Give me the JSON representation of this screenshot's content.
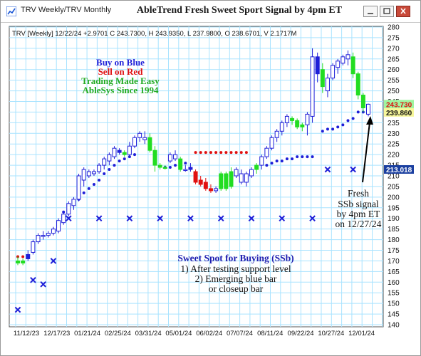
{
  "window": {
    "tab_text": "TRV Weekly/TRV Monthly",
    "title": "AbleTrend Fresh Sweet Sport Signal by 4pm ET"
  },
  "info_line": "TRV [Weekly] 12/22/24  +2.9701 C 243.7300, H 243.9350, L 237.9800, O 238.6701, V 2.1717M",
  "legend": {
    "buy": "Buy on Blue",
    "sell": "Sell on Red",
    "tagline": "Trading Made Easy",
    "since": "AbleSys Since 1994"
  },
  "annotations": {
    "fresh": [
      "Fresh",
      "SSb signal",
      "by 4pm ET",
      "on 12/27/24"
    ],
    "sweet_spot": [
      "Sweet Spot for Buying (SSb)",
      "1) After testing support level",
      "2) Emerging blue bar",
      "or closeup bar"
    ]
  },
  "colors": {
    "blue": "#1f1fd8",
    "red": "#e01010",
    "green": "#22dd22",
    "grid": "#a9e3ff",
    "badge_green": "#9ff59f",
    "badge_yellow": "#f7f79a",
    "badge_blue": "#1a3fa0"
  },
  "chart_data": {
    "type": "candlestick",
    "ylim": [
      140,
      280
    ],
    "y_ticks": [
      140,
      145,
      150,
      155,
      160,
      165,
      170,
      175,
      180,
      185,
      190,
      195,
      200,
      205,
      210,
      215,
      220,
      225,
      230,
      235,
      240,
      245,
      250,
      255,
      260,
      265,
      270,
      275,
      280
    ],
    "x_labels": [
      "11/12/23",
      "12/17/23",
      "01/21/24",
      "02/25/24",
      "03/31/24",
      "05/01/24",
      "06/02/24",
      "07/07/24",
      "08/11/24",
      "09/22/24",
      "10/27/24",
      "12/01/24"
    ],
    "price_badges": [
      {
        "value": "243.730",
        "style": "green"
      },
      {
        "value": "239.860",
        "style": "yellow"
      },
      {
        "value": "213.018",
        "style": "blue"
      }
    ],
    "candles": [
      {
        "o": 170,
        "h": 172,
        "l": 168,
        "c": 169,
        "color": "green"
      },
      {
        "o": 169,
        "h": 171,
        "l": 168,
        "c": 170,
        "color": "green"
      },
      {
        "o": 171,
        "h": 175,
        "l": 170,
        "c": 173,
        "color": "blue"
      },
      {
        "o": 174,
        "h": 180,
        "l": 173,
        "c": 179,
        "color": "hollow"
      },
      {
        "o": 179,
        "h": 183,
        "l": 178,
        "c": 182,
        "color": "hollow"
      },
      {
        "o": 182,
        "h": 184,
        "l": 180,
        "c": 182,
        "color": "hollow"
      },
      {
        "o": 182,
        "h": 184,
        "l": 181,
        "c": 183,
        "color": "hollow"
      },
      {
        "o": 183,
        "h": 186,
        "l": 182,
        "c": 185,
        "color": "hollow"
      },
      {
        "o": 184,
        "h": 190,
        "l": 183,
        "c": 189,
        "color": "hollow"
      },
      {
        "o": 188,
        "h": 193,
        "l": 187,
        "c": 192,
        "color": "hollow"
      },
      {
        "o": 192,
        "h": 198,
        "l": 191,
        "c": 197,
        "color": "hollow"
      },
      {
        "o": 196,
        "h": 200,
        "l": 194,
        "c": 199,
        "color": "hollow"
      },
      {
        "o": 199,
        "h": 211,
        "l": 198,
        "c": 210,
        "color": "hollow"
      },
      {
        "o": 208,
        "h": 214,
        "l": 205,
        "c": 213,
        "color": "hollow"
      },
      {
        "o": 210,
        "h": 213,
        "l": 209,
        "c": 212,
        "color": "hollow"
      },
      {
        "o": 211,
        "h": 213,
        "l": 210,
        "c": 212,
        "color": "hollow"
      },
      {
        "o": 212,
        "h": 216,
        "l": 211,
        "c": 215,
        "color": "hollow"
      },
      {
        "o": 215,
        "h": 219,
        "l": 213,
        "c": 218,
        "color": "hollow"
      },
      {
        "o": 217,
        "h": 221,
        "l": 215,
        "c": 220,
        "color": "hollow"
      },
      {
        "o": 219,
        "h": 224,
        "l": 218,
        "c": 223,
        "color": "hollow"
      },
      {
        "o": 221,
        "h": 223,
        "l": 220,
        "c": 222,
        "color": "blue"
      },
      {
        "o": 221,
        "h": 222,
        "l": 219,
        "c": 220,
        "color": "green"
      },
      {
        "o": 220,
        "h": 226,
        "l": 219,
        "c": 224,
        "color": "hollow"
      },
      {
        "o": 224,
        "h": 229,
        "l": 223,
        "c": 228,
        "color": "hollow"
      },
      {
        "o": 228,
        "h": 231,
        "l": 226,
        "c": 230,
        "color": "hollow"
      },
      {
        "o": 228,
        "h": 231,
        "l": 225,
        "c": 227,
        "color": "hollow"
      },
      {
        "o": 228,
        "h": 230,
        "l": 221,
        "c": 222,
        "color": "green"
      },
      {
        "o": 222,
        "h": 224,
        "l": 212,
        "c": 215,
        "color": "green"
      },
      {
        "o": 215,
        "h": 216,
        "l": 213,
        "c": 214,
        "color": "green"
      },
      {
        "o": 214,
        "h": 215,
        "l": 213,
        "c": 214,
        "color": "green"
      },
      {
        "o": 217,
        "h": 221,
        "l": 216,
        "c": 220,
        "color": "hollow"
      },
      {
        "o": 220,
        "h": 222,
        "l": 217,
        "c": 218,
        "color": "hollow"
      },
      {
        "o": 218,
        "h": 219,
        "l": 212,
        "c": 213,
        "color": "green"
      },
      {
        "o": 213,
        "h": 215,
        "l": 212,
        "c": 213,
        "color": "hollow"
      },
      {
        "o": 213,
        "h": 216,
        "l": 212,
        "c": 214,
        "color": "blue"
      },
      {
        "o": 212,
        "h": 213,
        "l": 206,
        "c": 207,
        "color": "red"
      },
      {
        "o": 208,
        "h": 210,
        "l": 205,
        "c": 206,
        "color": "red"
      },
      {
        "o": 207,
        "h": 209,
        "l": 203,
        "c": 204,
        "color": "red"
      },
      {
        "o": 204,
        "h": 206,
        "l": 202,
        "c": 203,
        "color": "red"
      },
      {
        "o": 203,
        "h": 205,
        "l": 202,
        "c": 204,
        "color": "hollow"
      },
      {
        "o": 204,
        "h": 212,
        "l": 203,
        "c": 211,
        "color": "green"
      },
      {
        "o": 211,
        "h": 212,
        "l": 203,
        "c": 204,
        "color": "green"
      },
      {
        "o": 205,
        "h": 214,
        "l": 204,
        "c": 212,
        "color": "green"
      },
      {
        "o": 210,
        "h": 214,
        "l": 209,
        "c": 213,
        "color": "hollow"
      },
      {
        "o": 211,
        "h": 213,
        "l": 206,
        "c": 207,
        "color": "hollow"
      },
      {
        "o": 207,
        "h": 212,
        "l": 205,
        "c": 211,
        "color": "hollow"
      },
      {
        "o": 210,
        "h": 214,
        "l": 209,
        "c": 213,
        "color": "hollow"
      },
      {
        "o": 213,
        "h": 216,
        "l": 211,
        "c": 215,
        "color": "green"
      },
      {
        "o": 215,
        "h": 220,
        "l": 213,
        "c": 219,
        "color": "hollow"
      },
      {
        "o": 219,
        "h": 224,
        "l": 218,
        "c": 223,
        "color": "hollow"
      },
      {
        "o": 223,
        "h": 229,
        "l": 222,
        "c": 228,
        "color": "hollow"
      },
      {
        "o": 228,
        "h": 232,
        "l": 226,
        "c": 231,
        "color": "hollow"
      },
      {
        "o": 231,
        "h": 236,
        "l": 229,
        "c": 235,
        "color": "hollow"
      },
      {
        "o": 235,
        "h": 239,
        "l": 233,
        "c": 238,
        "color": "hollow"
      },
      {
        "o": 236,
        "h": 238,
        "l": 234,
        "c": 237,
        "color": "green"
      },
      {
        "o": 236,
        "h": 237,
        "l": 232,
        "c": 233,
        "color": "green"
      },
      {
        "o": 233,
        "h": 235,
        "l": 231,
        "c": 234,
        "color": "green"
      },
      {
        "o": 234,
        "h": 240,
        "l": 229,
        "c": 239,
        "color": "hollow"
      },
      {
        "o": 238,
        "h": 270,
        "l": 235,
        "c": 266,
        "color": "hollow"
      },
      {
        "o": 258,
        "h": 268,
        "l": 254,
        "c": 266,
        "color": "blue"
      },
      {
        "o": 260,
        "h": 263,
        "l": 249,
        "c": 252,
        "color": "green"
      },
      {
        "o": 250,
        "h": 258,
        "l": 247,
        "c": 256,
        "color": "hollow"
      },
      {
        "o": 256,
        "h": 263,
        "l": 255,
        "c": 262,
        "color": "hollow"
      },
      {
        "o": 261,
        "h": 265,
        "l": 258,
        "c": 264,
        "color": "hollow"
      },
      {
        "o": 263,
        "h": 267,
        "l": 262,
        "c": 266,
        "color": "hollow"
      },
      {
        "o": 265,
        "h": 269,
        "l": 262,
        "c": 267,
        "color": "hollow"
      },
      {
        "o": 266,
        "h": 268,
        "l": 256,
        "c": 258,
        "color": "green"
      },
      {
        "o": 258,
        "h": 259,
        "l": 246,
        "c": 248,
        "color": "green"
      },
      {
        "o": 248,
        "h": 249,
        "l": 240,
        "c": 242,
        "color": "green"
      },
      {
        "o": 239,
        "h": 244,
        "l": 238,
        "c": 243.7,
        "color": "hollow"
      }
    ],
    "blue_dots": [
      [
        9,
        193
      ],
      [
        10,
        195
      ],
      [
        11,
        197
      ],
      [
        12,
        199
      ],
      [
        13,
        202
      ],
      [
        14,
        204
      ],
      [
        15,
        206
      ],
      [
        16,
        208
      ],
      [
        17,
        211
      ],
      [
        18,
        213
      ],
      [
        19,
        215
      ],
      [
        20,
        217
      ],
      [
        21,
        218
      ],
      [
        22,
        219
      ],
      [
        23,
        220
      ],
      [
        29,
        214
      ],
      [
        30,
        214
      ],
      [
        31,
        215
      ],
      [
        32,
        215
      ],
      [
        33,
        216
      ],
      [
        49,
        215
      ],
      [
        50,
        216
      ],
      [
        51,
        217
      ],
      [
        52,
        217
      ],
      [
        53,
        218
      ],
      [
        54,
        218
      ],
      [
        55,
        219
      ],
      [
        56,
        219
      ],
      [
        57,
        219
      ],
      [
        58,
        219
      ],
      [
        60,
        231
      ],
      [
        61,
        232
      ],
      [
        62,
        232
      ],
      [
        63,
        233
      ],
      [
        64,
        234
      ],
      [
        65,
        236
      ],
      [
        66,
        237
      ],
      [
        67,
        240
      ],
      [
        68,
        240
      ],
      [
        69,
        240
      ]
    ],
    "red_dots": [
      [
        0,
        172
      ],
      [
        1,
        172
      ],
      [
        35,
        221
      ],
      [
        36,
        221
      ],
      [
        37,
        221
      ],
      [
        38,
        221
      ],
      [
        39,
        221
      ],
      [
        40,
        221
      ],
      [
        41,
        221
      ],
      [
        42,
        221
      ],
      [
        43,
        221
      ],
      [
        44,
        221
      ],
      [
        45,
        221
      ]
    ],
    "x_markers": [
      [
        0,
        147
      ],
      [
        3,
        161
      ],
      [
        5,
        159
      ],
      [
        7,
        170
      ],
      [
        10,
        190
      ],
      [
        16,
        190
      ],
      [
        22,
        190
      ],
      [
        28,
        190
      ],
      [
        34,
        190
      ],
      [
        40,
        190
      ],
      [
        46,
        190
      ],
      [
        52,
        190
      ],
      [
        58,
        190
      ],
      [
        61,
        213
      ],
      [
        66,
        213
      ]
    ]
  }
}
